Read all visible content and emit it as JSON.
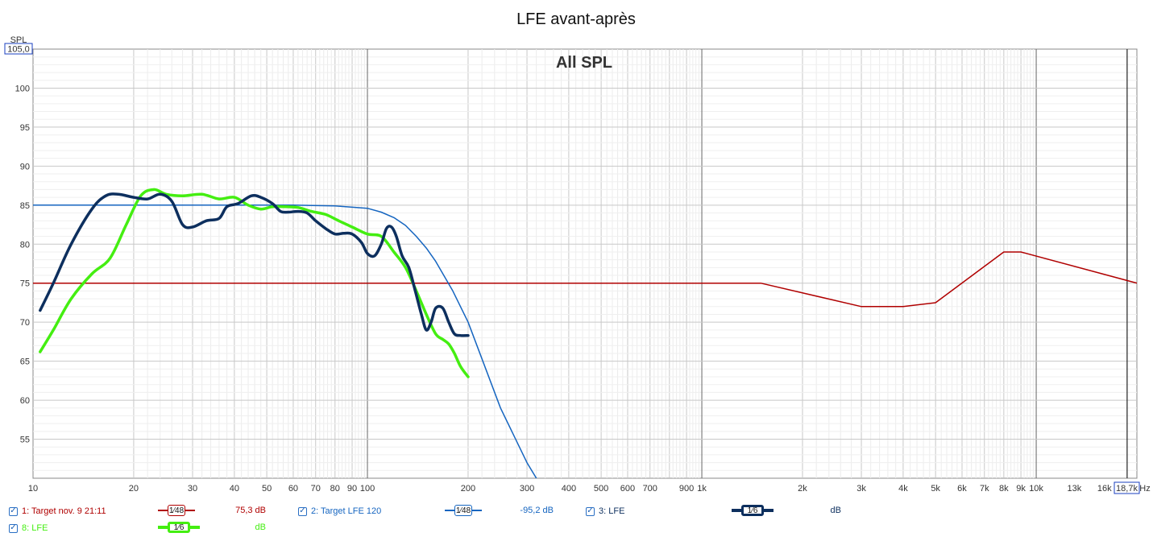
{
  "chart_data": {
    "type": "line",
    "title": "LFE avant-après",
    "subtitle": "All SPL",
    "ylabel": "SPL",
    "xunit": "Hz",
    "x_scale": "log",
    "xlim": [
      10,
      20000
    ],
    "ylim": [
      50,
      105
    ],
    "y_top_readout": "105,0",
    "x_right_readout": "18,7k",
    "y_ticks": [
      55,
      60,
      65,
      70,
      75,
      80,
      85,
      90,
      95,
      100
    ],
    "x_ticks": [
      {
        "v": 10,
        "l": "10"
      },
      {
        "v": 20,
        "l": "20"
      },
      {
        "v": 30,
        "l": "30"
      },
      {
        "v": 40,
        "l": "40"
      },
      {
        "v": 50,
        "l": "50"
      },
      {
        "v": 60,
        "l": "60"
      },
      {
        "v": 70,
        "l": "70"
      },
      {
        "v": 80,
        "l": "80"
      },
      {
        "v": 90,
        "l": "90"
      },
      {
        "v": 100,
        "l": "100"
      },
      {
        "v": 200,
        "l": "200"
      },
      {
        "v": 300,
        "l": "300"
      },
      {
        "v": 400,
        "l": "400"
      },
      {
        "v": 500,
        "l": "500"
      },
      {
        "v": 600,
        "l": "600"
      },
      {
        "v": 700,
        "l": "700"
      },
      {
        "v": 900,
        "l": "900"
      },
      {
        "v": 1000,
        "l": "1k"
      },
      {
        "v": 2000,
        "l": "2k"
      },
      {
        "v": 3000,
        "l": "3k"
      },
      {
        "v": 4000,
        "l": "4k"
      },
      {
        "v": 5000,
        "l": "5k"
      },
      {
        "v": 6000,
        "l": "6k"
      },
      {
        "v": 7000,
        "l": "7k"
      },
      {
        "v": 8000,
        "l": "8k"
      },
      {
        "v": 9000,
        "l": "9k"
      },
      {
        "v": 10000,
        "l": "10k"
      },
      {
        "v": 13000,
        "l": "13k"
      },
      {
        "v": 16000,
        "l": "16k"
      }
    ],
    "grid": true,
    "series": [
      {
        "name": "1: Target nov. 9 21:11",
        "color": "#b00000",
        "width": 1.5,
        "x": [
          10,
          1500,
          3000,
          4000,
          5000,
          8000,
          9000,
          20000
        ],
        "y": [
          75,
          75,
          72,
          72,
          72.5,
          79,
          79,
          75
        ]
      },
      {
        "name": "2: Target LFE 120",
        "color": "#1565c0",
        "width": 1.5,
        "x": [
          10,
          60,
          80,
          100,
          110,
          120,
          130,
          140,
          150,
          160,
          180,
          200,
          250,
          300,
          320
        ],
        "y": [
          85,
          85,
          84.9,
          84.6,
          84.1,
          83.4,
          82.4,
          81,
          79.5,
          77.8,
          74,
          70,
          59,
          52,
          50
        ]
      },
      {
        "name": "3: LFE",
        "color": "#0d2f5e",
        "width": 3.5,
        "x": [
          10.5,
          11.5,
          13,
          15,
          16.5,
          18,
          20,
          22,
          24,
          26,
          28,
          30,
          33,
          36,
          38,
          41,
          45,
          48,
          52,
          55,
          58,
          62,
          66,
          70,
          75,
          80,
          85,
          90,
          96,
          100,
          105,
          110,
          114,
          118,
          122,
          127,
          133,
          139,
          145,
          150,
          155,
          160,
          168,
          175,
          182,
          190,
          200
        ],
        "y": [
          71.5,
          75,
          80,
          84.5,
          86.2,
          86.4,
          86,
          85.8,
          86.4,
          85.5,
          82.5,
          82.2,
          83,
          83.3,
          84.8,
          85.2,
          86.2,
          86,
          85.2,
          84.2,
          84.1,
          84.2,
          84,
          83,
          82,
          81.3,
          81.4,
          81.3,
          80.2,
          78.8,
          78.5,
          80,
          82,
          82.2,
          81,
          78.5,
          77,
          74,
          71,
          69,
          70,
          71.8,
          71.8,
          70,
          68.5,
          68.3,
          68.3
        ]
      },
      {
        "name": "8: LFE",
        "color": "#44ee11",
        "width": 3.5,
        "x": [
          10.5,
          11.5,
          13,
          15,
          17,
          19,
          21,
          23,
          25,
          28,
          32,
          36,
          40,
          44,
          48,
          52,
          57,
          62,
          68,
          75,
          82,
          90,
          100,
          110,
          120,
          130,
          140,
          150,
          160,
          168,
          175,
          182,
          190,
          200
        ],
        "y": [
          66.2,
          69,
          73,
          76.2,
          78.2,
          82.5,
          86.2,
          87,
          86.4,
          86.2,
          86.4,
          85.8,
          86,
          85,
          84.5,
          84.8,
          84.8,
          84.7,
          84.2,
          83.8,
          83,
          82.2,
          81.3,
          81,
          79,
          77,
          74,
          71,
          68.5,
          67.8,
          67.2,
          66,
          64.3,
          63
        ]
      }
    ]
  },
  "legend": [
    {
      "label": "1: Target nov. 9 21:11",
      "smoothing": "1⁄48",
      "value": "75,3 dB",
      "color": "#b00000"
    },
    {
      "label": "2: Target LFE 120",
      "smoothing": "1⁄48",
      "value": "-95,2 dB",
      "color": "#1565c0"
    },
    {
      "label": "3: LFE",
      "smoothing": "1⁄6",
      "value": "dB",
      "color": "#0d2f5e"
    },
    {
      "label": "8: LFE",
      "smoothing": "1⁄6",
      "value": "dB",
      "color": "#44ee11"
    }
  ],
  "checkmark": "✓"
}
